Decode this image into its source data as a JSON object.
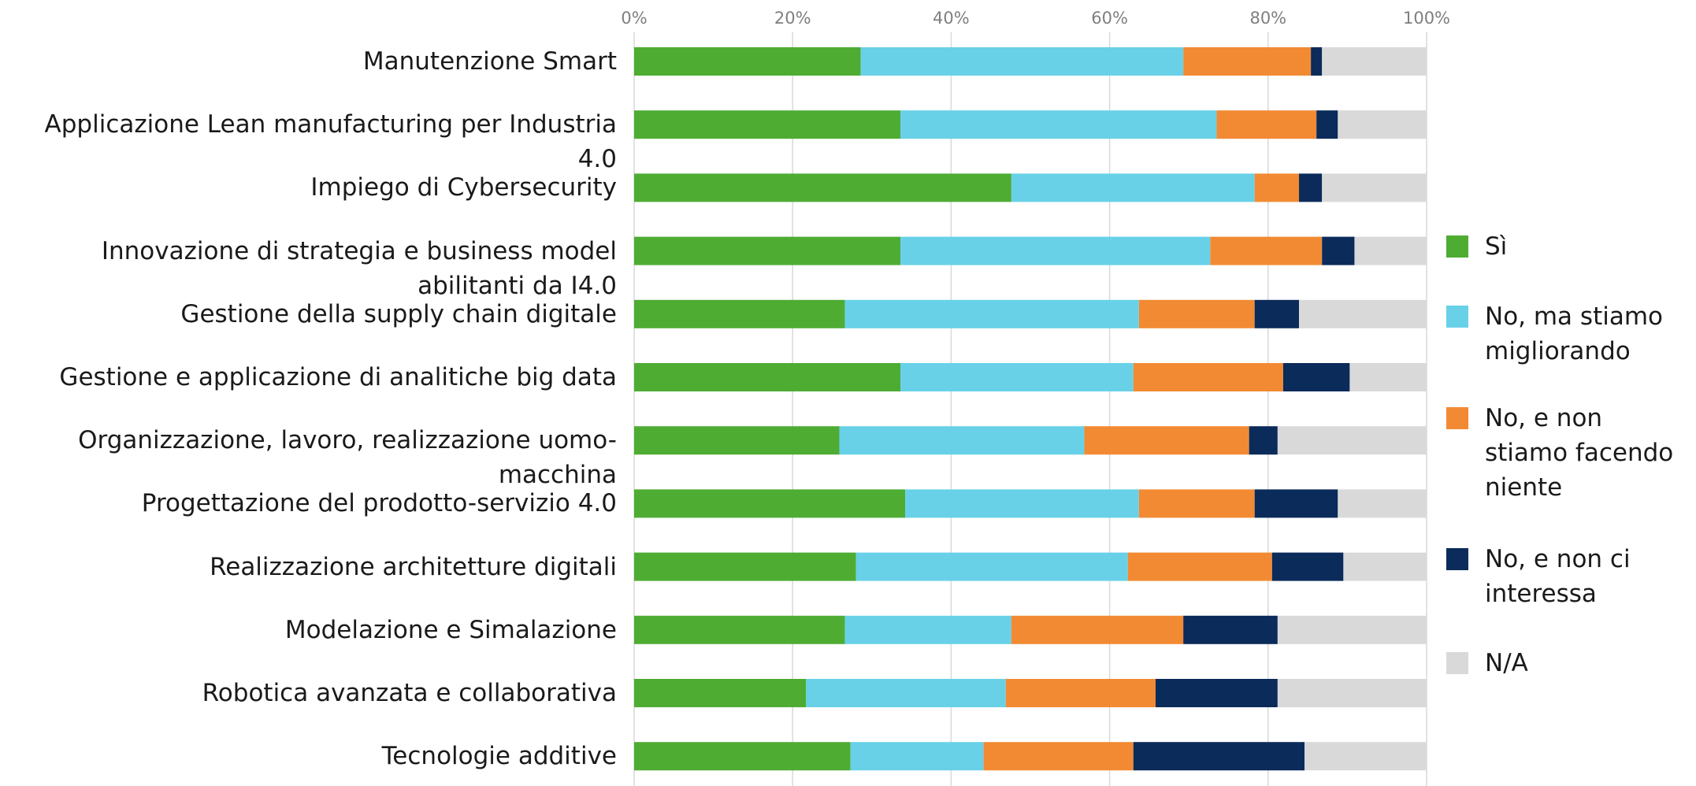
{
  "chart_data": {
    "type": "stacked-barh",
    "categories": [
      "Manutenzione Smart",
      "Applicazione Lean manufacturing per Industria 4.0",
      "Impiego di Cybersecurity",
      "Innovazione di strategia e business model abilitanti da I4.0",
      "Gestione della supply chain digitale",
      "Gestione e applicazione di analitiche big data",
      "Organizzazione, lavoro, realizzazione uomo-macchina",
      "Progettazione del prodotto-servizio 4.0",
      "Realizzazione architetture digitali",
      "Modelazione e Simalazione",
      "Robotica avanzata e collaborativa",
      "Tecnologie additive"
    ],
    "series": [
      {
        "name": "Sì",
        "color": "#4eac33",
        "values": [
          28.6,
          33.6,
          47.6,
          33.6,
          26.6,
          33.6,
          25.9,
          34.2,
          28.0,
          26.6,
          21.7,
          27.3
        ]
      },
      {
        "name": "No, ma stiamo migliorando",
        "color": "#68d1e8",
        "values": [
          40.7,
          39.9,
          30.7,
          39.1,
          37.1,
          29.4,
          30.9,
          29.5,
          34.3,
          21.0,
          25.2,
          16.8
        ]
      },
      {
        "name": "No, e non stiamo facendo niente",
        "color": "#f28a33",
        "values": [
          16.1,
          12.6,
          5.6,
          14.1,
          14.6,
          18.9,
          20.8,
          14.6,
          18.2,
          21.7,
          18.9,
          18.9
        ]
      },
      {
        "name": "No, e non ci interessa",
        "color": "#0b2b5a",
        "values": [
          1.4,
          2.7,
          2.9,
          4.1,
          5.6,
          8.4,
          3.6,
          10.5,
          9.0,
          11.9,
          15.4,
          21.6
        ]
      },
      {
        "name": "N/A",
        "color": "#d9d9d9",
        "values": [
          13.2,
          11.2,
          13.2,
          9.1,
          16.1,
          9.7,
          18.8,
          11.2,
          10.5,
          18.8,
          18.8,
          15.4
        ]
      }
    ],
    "xlim": [
      0,
      100
    ],
    "xticks": [
      {
        "value": 0,
        "label": "0%"
      },
      {
        "value": 20,
        "label": "20%"
      },
      {
        "value": 40,
        "label": "40%"
      },
      {
        "value": 60,
        "label": "60%"
      },
      {
        "value": 80,
        "label": "80%"
      },
      {
        "value": 100,
        "label": "100%"
      }
    ],
    "grid": true,
    "legend": "right"
  }
}
